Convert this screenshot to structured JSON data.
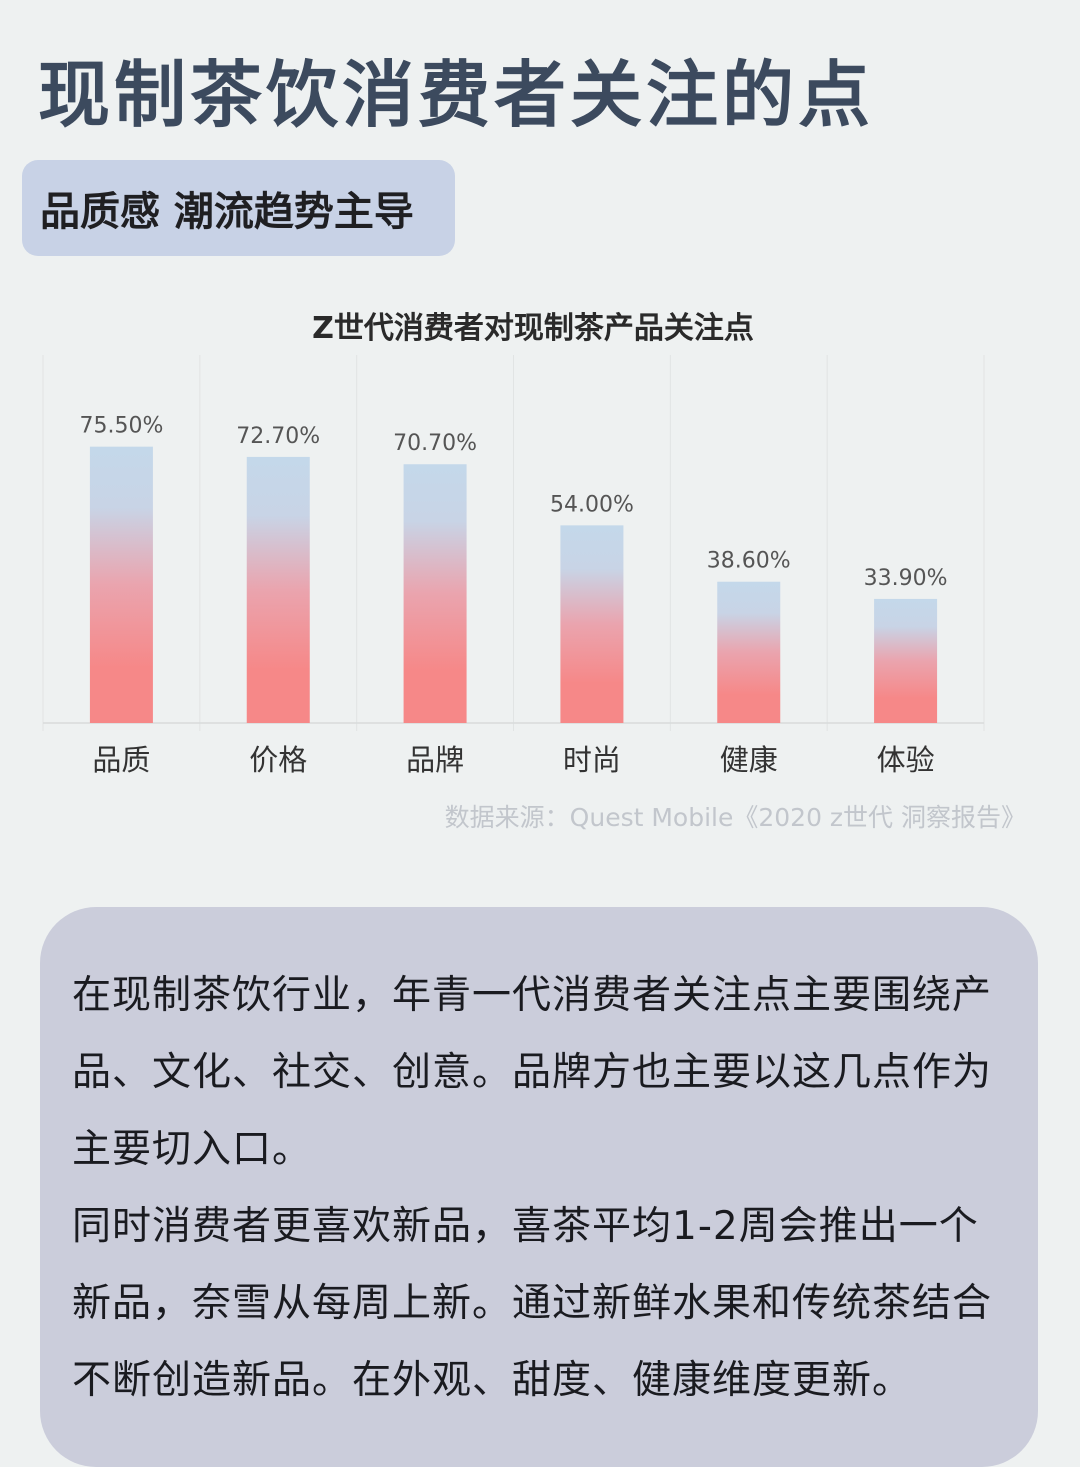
{
  "header": {
    "title": "现制茶饮消费者关注的点",
    "badge": "品质感 潮流趋势主导"
  },
  "chart_data": {
    "type": "bar",
    "title": "Z世代消费者对现制茶产品关注点",
    "categories": [
      "品质",
      "价格",
      "品牌",
      "时尚",
      "健康",
      "体验"
    ],
    "values": [
      75.5,
      72.7,
      70.7,
      54.0,
      38.6,
      33.9
    ],
    "value_labels": [
      "75.50%",
      "72.70%",
      "70.70%",
      "54.00%",
      "38.60%",
      "33.90%"
    ],
    "unit": "%",
    "ylim": [
      0,
      100
    ],
    "grid": "vertical category separators",
    "colors": {
      "bar_top": "#c4d8ea",
      "bar_bottom": "#f68888",
      "label": "#555555",
      "axis": "#d8dbdb"
    },
    "source": "数据来源：Quest Mobile《2020 z世代 洞察报告》"
  },
  "summary": {
    "paragraphs": [
      "在现制茶饮行业，年青一代消费者关注点主要围绕产品、文化、社交、创意。品牌方也主要以这几点作为主要切入口。",
      "同时消费者更喜欢新品，喜茶平均1-2周会推出一个新品，奈雪从每周上新。通过新鲜水果和传统茶结合不断创造新品。在外观、甜度、健康维度更新。"
    ]
  }
}
